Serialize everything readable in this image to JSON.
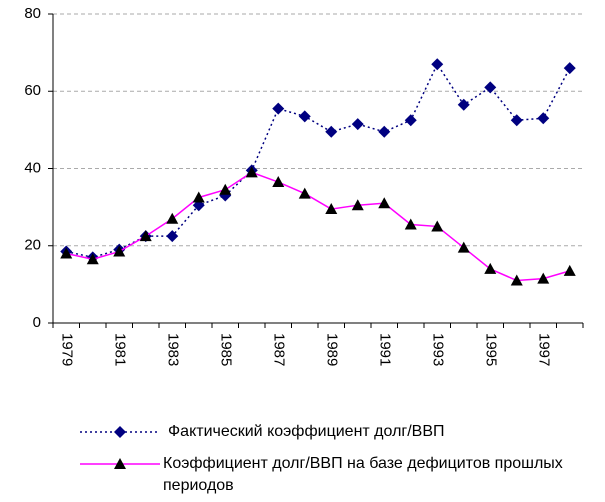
{
  "chart_data": {
    "type": "line",
    "categories": [
      "1979",
      null,
      "1981",
      null,
      "1983",
      null,
      "1985",
      null,
      "1987",
      null,
      "1989",
      null,
      "1991",
      null,
      "1993",
      null,
      "1995",
      null,
      "1997",
      null
    ],
    "series": [
      {
        "name": "Фактический коэффициент долг/ВВП",
        "color": "#000080",
        "line_style": "dotted",
        "marker": "diamond",
        "marker_color": "#000080",
        "values": [
          18.5,
          17,
          19,
          22.5,
          22.5,
          30.5,
          33,
          39.5,
          55.5,
          53.5,
          49.5,
          51.5,
          49.5,
          52.5,
          67,
          56.5,
          61,
          52.5,
          53,
          66
        ]
      },
      {
        "name": "Коэффициент долг/ВВП на базе дефицитов прошлых периодов",
        "color": "#ff00ff",
        "line_style": "solid",
        "marker": "triangle",
        "marker_color": "#000000",
        "values": [
          18,
          16.5,
          18.5,
          22.5,
          27,
          32.5,
          34.5,
          39,
          36.5,
          33.5,
          29.5,
          30.5,
          31,
          25.5,
          25,
          19.5,
          14,
          11,
          11.5,
          13.5
        ]
      }
    ],
    "ylim": [
      0,
      80
    ],
    "yticks": [
      0,
      20,
      40,
      60,
      80
    ],
    "grid": true,
    "legend": "bottom"
  }
}
